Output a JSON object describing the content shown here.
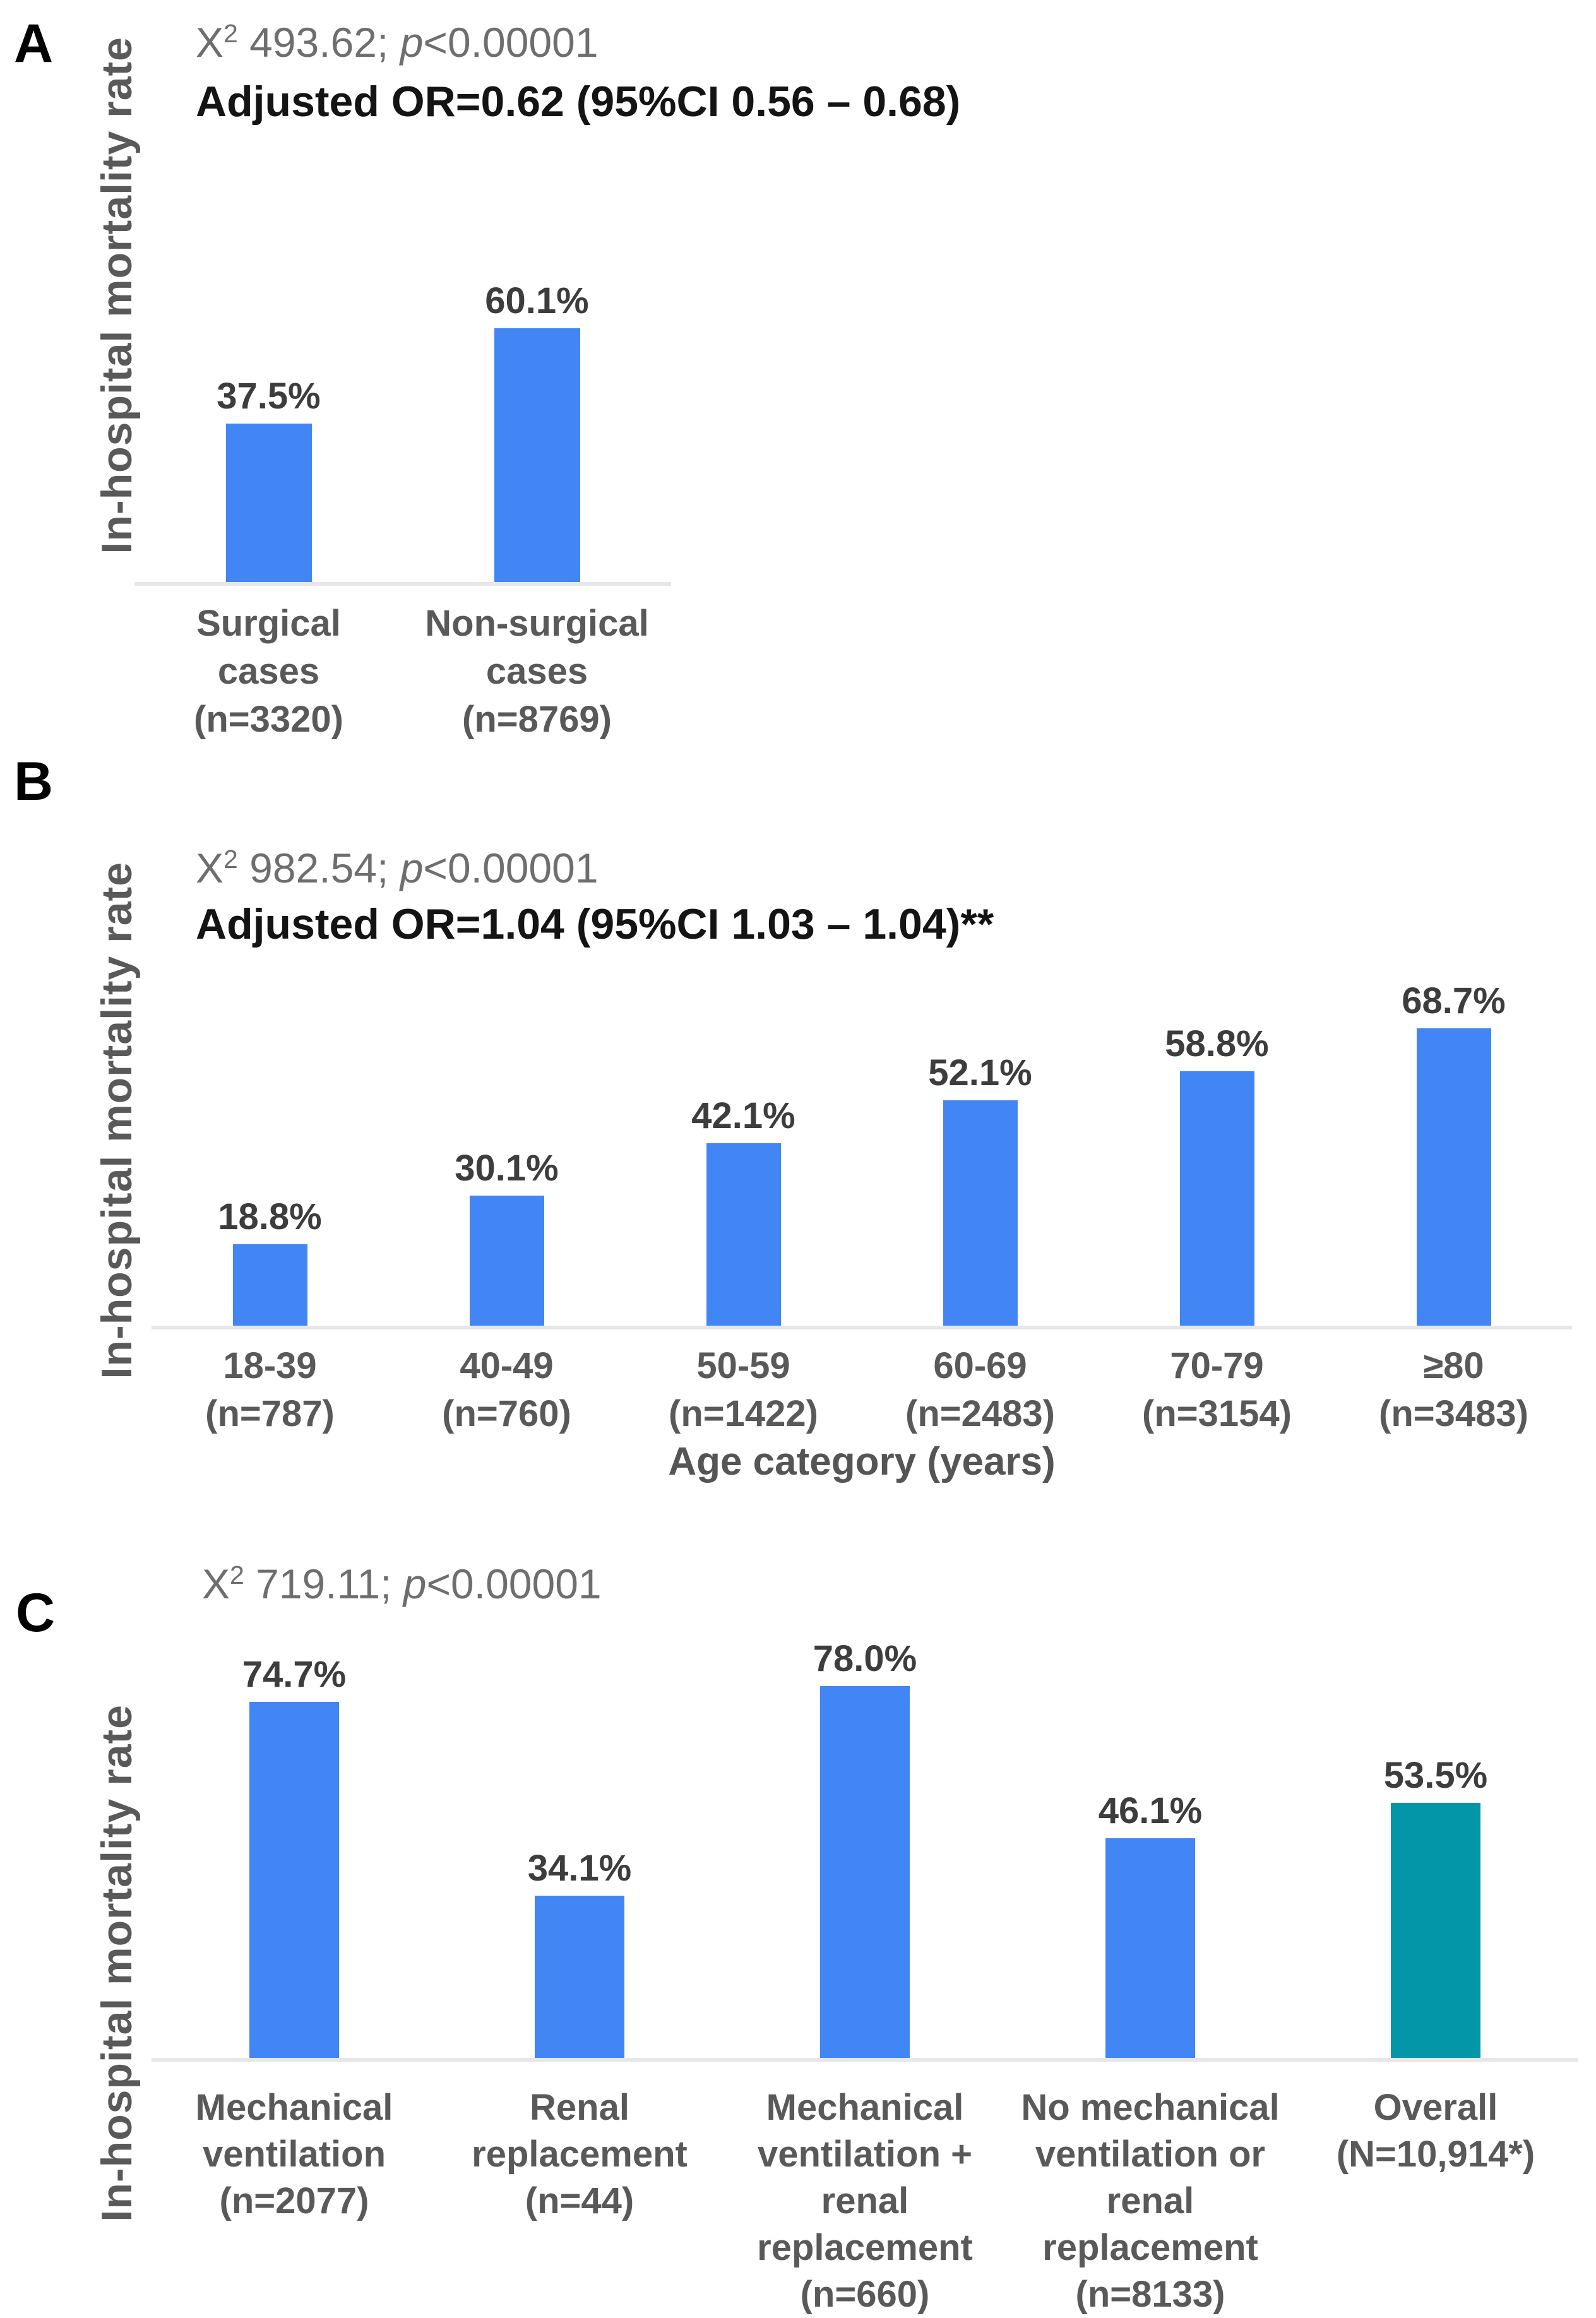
{
  "figure": {
    "background": "#ffffff",
    "bar_color_primary": "#4285F4",
    "bar_color_overall": "#0296A8",
    "axis_line_color": "#e7e7e7",
    "y_axis_label": "In-hospital mortality rate"
  },
  "chart_data": [
    {
      "type": "bar",
      "panel_letter": "A",
      "stats": {
        "x": "X",
        "sup": "2",
        "chi": " 493.62; ",
        "p": "p",
        "pv": "<0.00001"
      },
      "or_line": "Adjusted OR=0.62 (95%CI 0.56 – 0.68)",
      "ylabel": "In-hospital mortality rate",
      "xlabel": "",
      "categories": [
        [
          "Surgical",
          "cases",
          "(n=3320)"
        ],
        [
          "Non-surgical",
          "cases",
          "(n=8769)"
        ]
      ],
      "values": [
        37.5,
        60.1
      ],
      "value_labels": [
        "37.5%",
        "60.1%"
      ],
      "colors": [
        "#4285F4",
        "#4285F4"
      ],
      "ylim": [
        0,
        75
      ],
      "grid": false,
      "legend": "none"
    },
    {
      "type": "bar",
      "panel_letter": "B",
      "stats": {
        "x": "X",
        "sup": "2",
        "chi": " 982.54; ",
        "p": "p",
        "pv": "<0.00001"
      },
      "or_line": "Adjusted OR=1.04 (95%CI 1.03 – 1.04)**",
      "ylabel": "In-hospital mortality rate",
      "xlabel": "Age category (years)",
      "categories": [
        [
          "18-39",
          "(n=787)"
        ],
        [
          "40-49",
          "(n=760)"
        ],
        [
          "50-59",
          "(n=1422)"
        ],
        [
          "60-69",
          "(n=2483)"
        ],
        [
          "70-79",
          "(n=3154)"
        ],
        [
          "≥80",
          "(n=3483)"
        ]
      ],
      "values": [
        18.8,
        30.1,
        42.1,
        52.1,
        58.8,
        68.7
      ],
      "value_labels": [
        "18.8%",
        "30.1%",
        "42.1%",
        "52.1%",
        "58.8%",
        "68.7%"
      ],
      "colors": [
        "#4285F4",
        "#4285F4",
        "#4285F4",
        "#4285F4",
        "#4285F4",
        "#4285F4"
      ],
      "ylim": [
        0,
        75
      ],
      "grid": false,
      "legend": "none"
    },
    {
      "type": "bar",
      "panel_letter": "C",
      "stats": {
        "x": "X",
        "sup": "2",
        "chi": " 719.11; ",
        "p": "p",
        "pv": "<0.00001"
      },
      "or_line": "",
      "ylabel": "In-hospital mortality rate",
      "xlabel": "",
      "categories": [
        [
          "Mechanical",
          "ventilation",
          "(n=2077)"
        ],
        [
          "Renal",
          "replacement",
          "(n=44)"
        ],
        [
          "Mechanical",
          "ventilation +",
          "renal",
          "replacement",
          "(n=660)"
        ],
        [
          "No mechanical",
          "ventilation or",
          "renal",
          "replacement",
          "(n=8133)"
        ],
        [
          "Overall",
          "(N=10,914*)"
        ]
      ],
      "values": [
        74.7,
        34.1,
        78.0,
        46.1,
        53.5
      ],
      "value_labels": [
        "74.7%",
        "34.1%",
        "78.0%",
        "46.1%",
        "53.5%"
      ],
      "colors": [
        "#4285F4",
        "#4285F4",
        "#4285F4",
        "#4285F4",
        "#0296A8"
      ],
      "ylim": [
        0,
        80
      ],
      "grid": false,
      "legend": "none"
    }
  ]
}
